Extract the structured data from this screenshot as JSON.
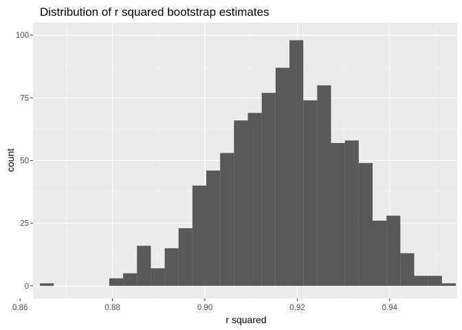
{
  "chart_data": {
    "type": "histogram",
    "title": "Distribution of r squared bootstrap estimates",
    "xlabel": "r squared",
    "ylabel": "count",
    "xlim": [
      0.8628,
      0.9546
    ],
    "ylim": [
      -5,
      105
    ],
    "x_ticks": [
      0.86,
      0.88,
      0.9,
      0.92,
      0.94
    ],
    "x_tick_labels": [
      "0.86",
      "0.88",
      "0.90",
      "0.92",
      "0.94"
    ],
    "y_ticks": [
      0,
      25,
      50,
      75,
      100
    ],
    "y_tick_labels": [
      "0",
      "25",
      "50",
      "75",
      "100"
    ],
    "bin_width": 0.003,
    "bins": [
      {
        "x0": 0.8643,
        "x1": 0.8673,
        "count": 1
      },
      {
        "x0": 0.8673,
        "x1": 0.8703,
        "count": 0
      },
      {
        "x0": 0.8703,
        "x1": 0.8733,
        "count": 0
      },
      {
        "x0": 0.8733,
        "x1": 0.8763,
        "count": 0
      },
      {
        "x0": 0.8763,
        "x1": 0.8793,
        "count": 0
      },
      {
        "x0": 0.8793,
        "x1": 0.8823,
        "count": 3
      },
      {
        "x0": 0.8823,
        "x1": 0.8853,
        "count": 5
      },
      {
        "x0": 0.8853,
        "x1": 0.8883,
        "count": 16
      },
      {
        "x0": 0.8883,
        "x1": 0.8913,
        "count": 7
      },
      {
        "x0": 0.8913,
        "x1": 0.8943,
        "count": 15
      },
      {
        "x0": 0.8943,
        "x1": 0.8973,
        "count": 23
      },
      {
        "x0": 0.8973,
        "x1": 0.9003,
        "count": 40
      },
      {
        "x0": 0.9003,
        "x1": 0.9033,
        "count": 46
      },
      {
        "x0": 0.9033,
        "x1": 0.9063,
        "count": 53
      },
      {
        "x0": 0.9063,
        "x1": 0.9093,
        "count": 66
      },
      {
        "x0": 0.9093,
        "x1": 0.9123,
        "count": 69
      },
      {
        "x0": 0.9123,
        "x1": 0.9153,
        "count": 77
      },
      {
        "x0": 0.9153,
        "x1": 0.9183,
        "count": 87
      },
      {
        "x0": 0.9183,
        "x1": 0.9213,
        "count": 98
      },
      {
        "x0": 0.9213,
        "x1": 0.9243,
        "count": 74
      },
      {
        "x0": 0.9243,
        "x1": 0.9273,
        "count": 80
      },
      {
        "x0": 0.9273,
        "x1": 0.9303,
        "count": 57
      },
      {
        "x0": 0.9303,
        "x1": 0.9333,
        "count": 58
      },
      {
        "x0": 0.9333,
        "x1": 0.9363,
        "count": 49
      },
      {
        "x0": 0.9363,
        "x1": 0.9393,
        "count": 26
      },
      {
        "x0": 0.9393,
        "x1": 0.9423,
        "count": 28
      },
      {
        "x0": 0.9423,
        "x1": 0.9453,
        "count": 13
      },
      {
        "x0": 0.9453,
        "x1": 0.9483,
        "count": 4
      },
      {
        "x0": 0.9483,
        "x1": 0.9513,
        "count": 4
      },
      {
        "x0": 0.9513,
        "x1": 0.9543,
        "count": 1
      }
    ],
    "grid": true,
    "legend": "none",
    "colors": {
      "panel_background": "#EBEBEB",
      "grid_major": "#FFFFFF",
      "grid_minor": "#F5F5F5",
      "bar_fill": "#595959",
      "tick_color": "#333333"
    }
  }
}
